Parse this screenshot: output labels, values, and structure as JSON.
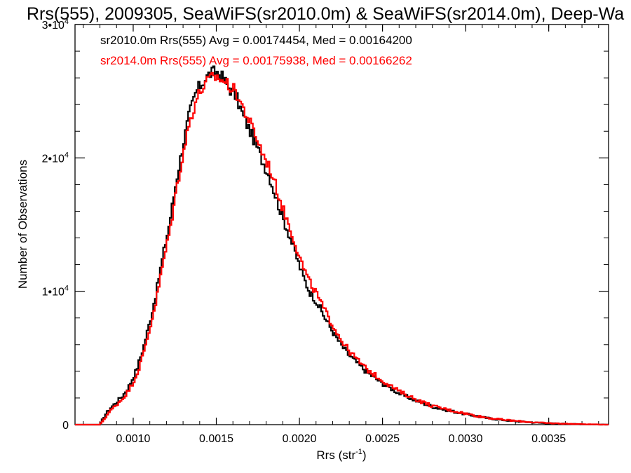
{
  "chart_data": {
    "type": "line",
    "title": "Rrs(555), 2009305, SeaWiFS(sr2010.0m) & SeaWiFS(sr2014.0m), Deep-Wa",
    "xlabel": "Rrs (str",
    "xlabel_sup": "-1",
    "xlabel_end": ")",
    "ylabel": "Number of Observations",
    "xlim": [
      0.00065,
      0.00386
    ],
    "ylim": [
      0,
      30000
    ],
    "x_ticks": [
      {
        "value": 0.001,
        "label": "0.0010"
      },
      {
        "value": 0.0015,
        "label": "0.0015"
      },
      {
        "value": 0.002,
        "label": "0.0020"
      },
      {
        "value": 0.0025,
        "label": "0.0025"
      },
      {
        "value": 0.003,
        "label": "0.0030"
      },
      {
        "value": 0.0035,
        "label": "0.0035"
      }
    ],
    "y_ticks": [
      {
        "value": 0,
        "label": "0",
        "sup": ""
      },
      {
        "value": 10000,
        "label": "1•10",
        "sup": "4"
      },
      {
        "value": 20000,
        "label": "2•10",
        "sup": "4"
      },
      {
        "value": 30000,
        "label": "3•10",
        "sup": "4"
      }
    ],
    "annotations": [
      "sr2010.0m Rrs(555) Avg = 0.00174454, Med = 0.00164200",
      "sr2014.0m Rrs(555) Avg = 0.00175938, Med = 0.00166262"
    ],
    "series": [
      {
        "color": "#000000",
        "x": [
          0.00065,
          0.0008,
          0.00083,
          0.00086,
          0.0009,
          0.00094,
          0.00098,
          0.00102,
          0.00106,
          0.0011,
          0.00114,
          0.00118,
          0.00122,
          0.00126,
          0.0013,
          0.00134,
          0.00138,
          0.00142,
          0.00146,
          0.0015,
          0.00154,
          0.00158,
          0.00162,
          0.00166,
          0.0017,
          0.00174,
          0.00178,
          0.00182,
          0.00186,
          0.0019,
          0.00194,
          0.00198,
          0.00202,
          0.00206,
          0.0021,
          0.00215,
          0.0022,
          0.00225,
          0.0023,
          0.0024,
          0.0025,
          0.0026,
          0.0027,
          0.0028,
          0.0029,
          0.003,
          0.0031,
          0.0032,
          0.0033,
          0.0034,
          0.0035,
          0.0036,
          0.0037,
          0.00386
        ],
        "y": [
          0,
          0,
          700,
          1200,
          1700,
          2200,
          3000,
          4100,
          5700,
          7700,
          10000,
          12700,
          15200,
          18300,
          21000,
          23400,
          25000,
          25700,
          26300,
          26500,
          26000,
          25200,
          24600,
          23200,
          22100,
          21000,
          19700,
          18600,
          17000,
          15500,
          14200,
          12700,
          11200,
          10000,
          9300,
          8100,
          7000,
          6000,
          5200,
          4000,
          3100,
          2350,
          1800,
          1350,
          1050,
          800,
          550,
          380,
          260,
          170,
          100,
          60,
          30,
          0
        ]
      },
      {
        "color": "#ff0000",
        "x": [
          0.00065,
          0.0008,
          0.00083,
          0.00086,
          0.0009,
          0.00094,
          0.00098,
          0.00102,
          0.00106,
          0.0011,
          0.00114,
          0.00118,
          0.00122,
          0.00126,
          0.0013,
          0.00134,
          0.00138,
          0.00142,
          0.00146,
          0.0015,
          0.00154,
          0.00158,
          0.00162,
          0.00166,
          0.0017,
          0.00174,
          0.00178,
          0.00182,
          0.00186,
          0.0019,
          0.00194,
          0.00198,
          0.00202,
          0.00206,
          0.0021,
          0.00215,
          0.0022,
          0.00225,
          0.0023,
          0.0024,
          0.0025,
          0.0026,
          0.0027,
          0.0028,
          0.0029,
          0.003,
          0.0031,
          0.0032,
          0.0033,
          0.0034,
          0.0035,
          0.0036,
          0.0037,
          0.00386
        ],
        "y": [
          0,
          0,
          500,
          1000,
          1500,
          2000,
          2700,
          3700,
          5200,
          7200,
          9400,
          12100,
          14500,
          17600,
          20300,
          22700,
          24400,
          25300,
          25900,
          26100,
          25800,
          25400,
          24900,
          23800,
          22700,
          21600,
          20300,
          19300,
          17800,
          16200,
          14900,
          13400,
          11900,
          10700,
          9900,
          8600,
          7500,
          6400,
          5500,
          4200,
          3300,
          2500,
          1900,
          1400,
          1100,
          830,
          580,
          400,
          280,
          180,
          110,
          70,
          35,
          0
        ]
      }
    ]
  }
}
